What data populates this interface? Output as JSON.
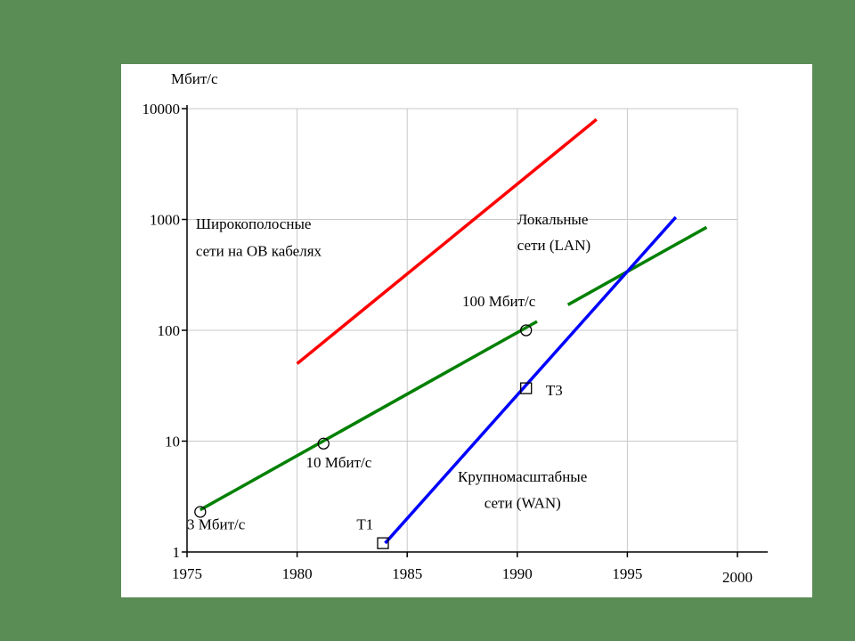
{
  "chart_data": {
    "type": "line",
    "title": "",
    "xlabel": "",
    "ylabel": "Мбит/с",
    "yscale": "log",
    "xlim": [
      1975,
      2000
    ],
    "ylim": [
      1,
      10000
    ],
    "x_ticks": [
      1975,
      1980,
      1985,
      1990,
      1995,
      2000
    ],
    "x_tick_labels": [
      "1975",
      "1980",
      "1985",
      "1990",
      "1995",
      "2000"
    ],
    "y_ticks": [
      1,
      10,
      100,
      1000,
      10000
    ],
    "y_tick_labels": [
      "1",
      "10",
      "100",
      "1000",
      "10000"
    ],
    "grid": true,
    "series": [
      {
        "color": "#ff0000",
        "points": [
          [
            1980,
            50
          ],
          [
            1993.6,
            8000
          ]
        ]
      },
      {
        "color": "#008000",
        "points": [
          [
            1975.6,
            2.4
          ],
          [
            1990.9,
            120
          ]
        ]
      },
      {
        "color": "#008000",
        "points": [
          [
            1992.3,
            170
          ],
          [
            1998.6,
            850
          ]
        ]
      },
      {
        "color": "#0000ff",
        "points": [
          [
            1984.0,
            1.2
          ],
          [
            1997.2,
            1050
          ]
        ]
      }
    ],
    "markers": [
      {
        "shape": "circle",
        "x": 1975.6,
        "y": 2.3
      },
      {
        "shape": "circle",
        "x": 1981.2,
        "y": 9.5
      },
      {
        "shape": "circle",
        "x": 1990.4,
        "y": 100
      },
      {
        "shape": "square",
        "x": 1983.9,
        "y": 1.2
      },
      {
        "shape": "square",
        "x": 1990.4,
        "y": 30
      }
    ],
    "annotations": [
      {
        "text": "Широкополосные",
        "x": 1975.4,
        "y": 820
      },
      {
        "text": "сети на ОВ кабелях",
        "x": 1975.4,
        "y": 470
      },
      {
        "text": "Локальные",
        "x": 1990.0,
        "y": 900
      },
      {
        "text": "сети (LAN)",
        "x": 1990.0,
        "y": 530
      },
      {
        "text": "100 Мбит/с",
        "x": 1987.5,
        "y": 165
      },
      {
        "text": "Т3",
        "x": 1991.3,
        "y": 26
      },
      {
        "text": "10 Мбит/с",
        "x": 1980.4,
        "y": 5.8
      },
      {
        "text": "Крупномасштабные",
        "x": 1987.3,
        "y": 4.3
      },
      {
        "text": "сети (WAN)",
        "x": 1988.5,
        "y": 2.5
      },
      {
        "text": "Т1",
        "x": 1982.7,
        "y": 1.6
      },
      {
        "text": "3 Мбит/с",
        "x": 1975.0,
        "y": 1.6
      }
    ]
  }
}
